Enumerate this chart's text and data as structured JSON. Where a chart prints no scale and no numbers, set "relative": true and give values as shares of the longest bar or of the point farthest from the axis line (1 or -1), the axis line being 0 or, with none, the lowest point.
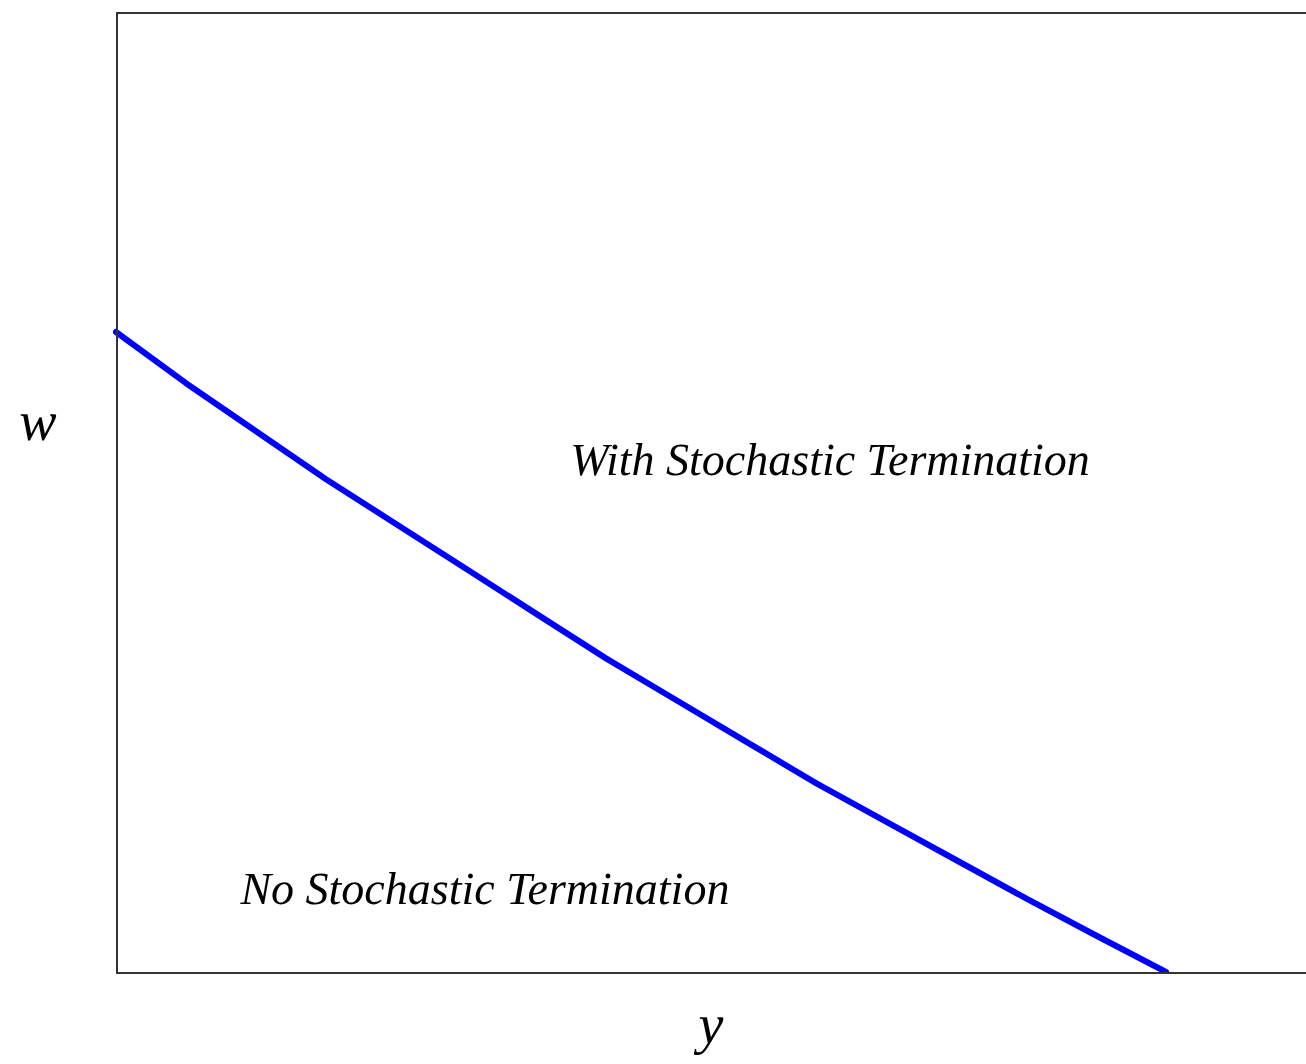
{
  "chart_data": {
    "type": "line",
    "relative": true,
    "xlabel": "y",
    "ylabel": "w",
    "legend": false,
    "marker": "none",
    "line_style": "solid",
    "categories": [
      null,
      null,
      null,
      null,
      null,
      null,
      null,
      null,
      null,
      null,
      null,
      null,
      null,
      null,
      null,
      null,
      null,
      null
    ],
    "series": [
      {
        "color": "#0000ff",
        "values": [
          1,
          0.92,
          0.845,
          0.77,
          0.7,
          0.63,
          0.56,
          0.49,
          0.425,
          0.36,
          0.295,
          0.235,
          0.175,
          0.115,
          0.057,
          0,
          null,
          null
        ]
      }
    ],
    "annotations": [
      "With Stochastic Termination",
      "No Stochastic Termination"
    ]
  }
}
